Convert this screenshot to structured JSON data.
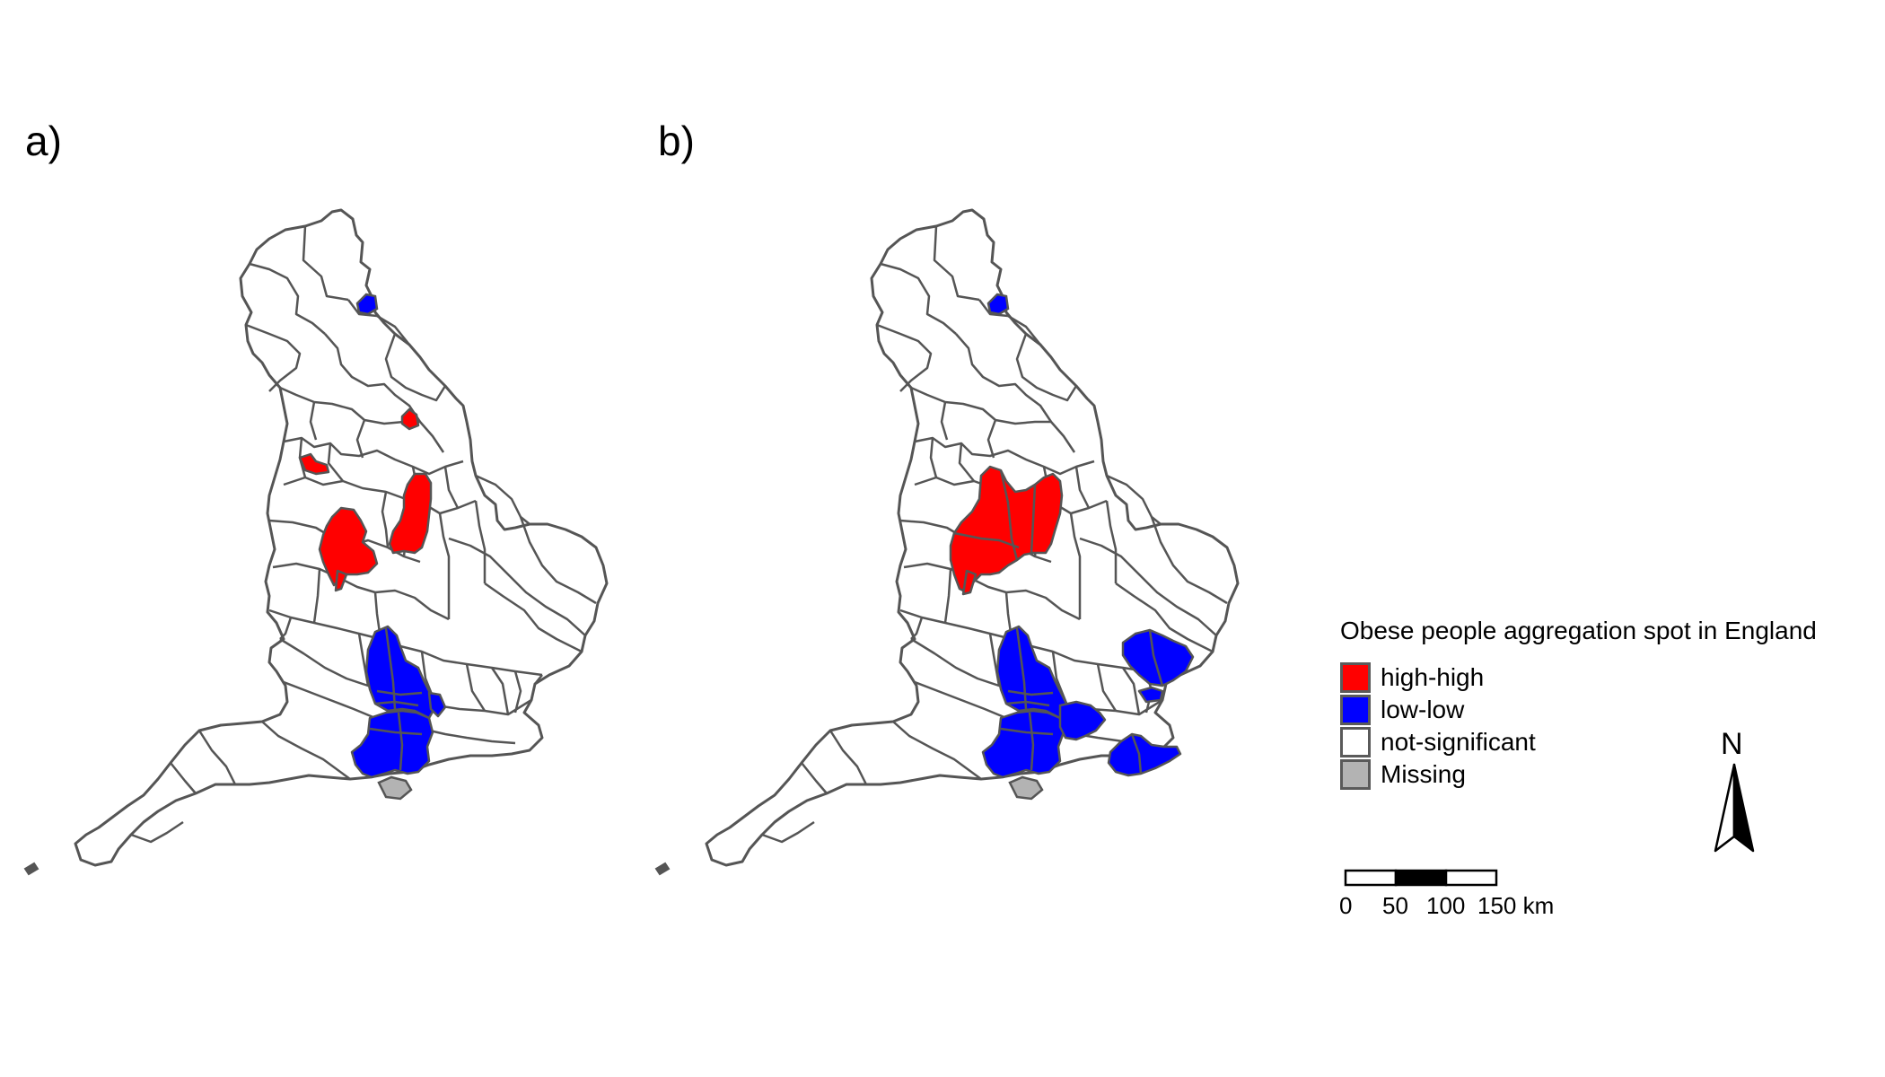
{
  "panels": [
    {
      "label": "a)"
    },
    {
      "label": "b)"
    }
  ],
  "legend": {
    "title": "Obese people aggregation spot in England",
    "items": [
      {
        "label": "high-high",
        "color": "#ff0000"
      },
      {
        "label": "low-low",
        "color": "#0000ff"
      },
      {
        "label": "not-significant",
        "color": "#ffffff"
      },
      {
        "label": "Missing",
        "color": "#b3b3b3"
      }
    ]
  },
  "north_arrow": {
    "label": "N"
  },
  "scale_bar": {
    "ticks": [
      "0",
      "50",
      "100",
      "150 km"
    ]
  },
  "colors": {
    "boundary": "#555555",
    "high_high": "#ff0000",
    "low_low": "#0000ff",
    "missing": "#b3b3b3"
  }
}
